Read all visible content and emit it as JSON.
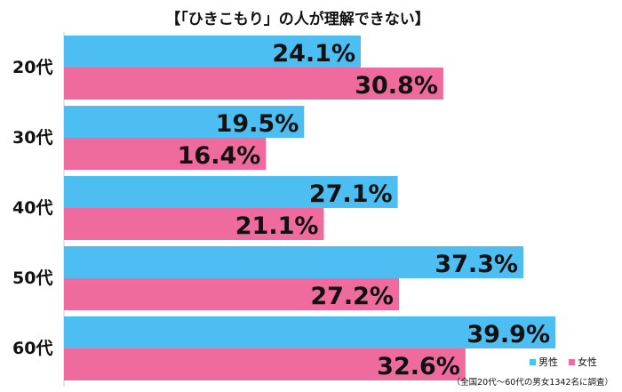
{
  "chart_data": {
    "type": "bar",
    "orientation": "horizontal",
    "title": "【「ひきこもり」の人が理解できない】",
    "categories": [
      "20代",
      "30代",
      "40代",
      "50代",
      "60代"
    ],
    "series": [
      {
        "name": "男性",
        "color": "#4dbef2",
        "values": [
          24.1,
          19.5,
          27.1,
          37.3,
          39.9
        ],
        "labels": [
          "24.1%",
          "19.5%",
          "27.1%",
          "37.3%",
          "39.9%"
        ]
      },
      {
        "name": "女性",
        "color": "#ef6a9d",
        "values": [
          30.8,
          16.4,
          21.1,
          27.2,
          32.6
        ],
        "labels": [
          "30.8%",
          "16.4%",
          "21.1%",
          "27.2%",
          "32.6%"
        ]
      }
    ],
    "value_unit": "%",
    "grid": false,
    "legend_position": "bottom-right",
    "note": "（全国20代～60代の男女1342名に調査）"
  }
}
